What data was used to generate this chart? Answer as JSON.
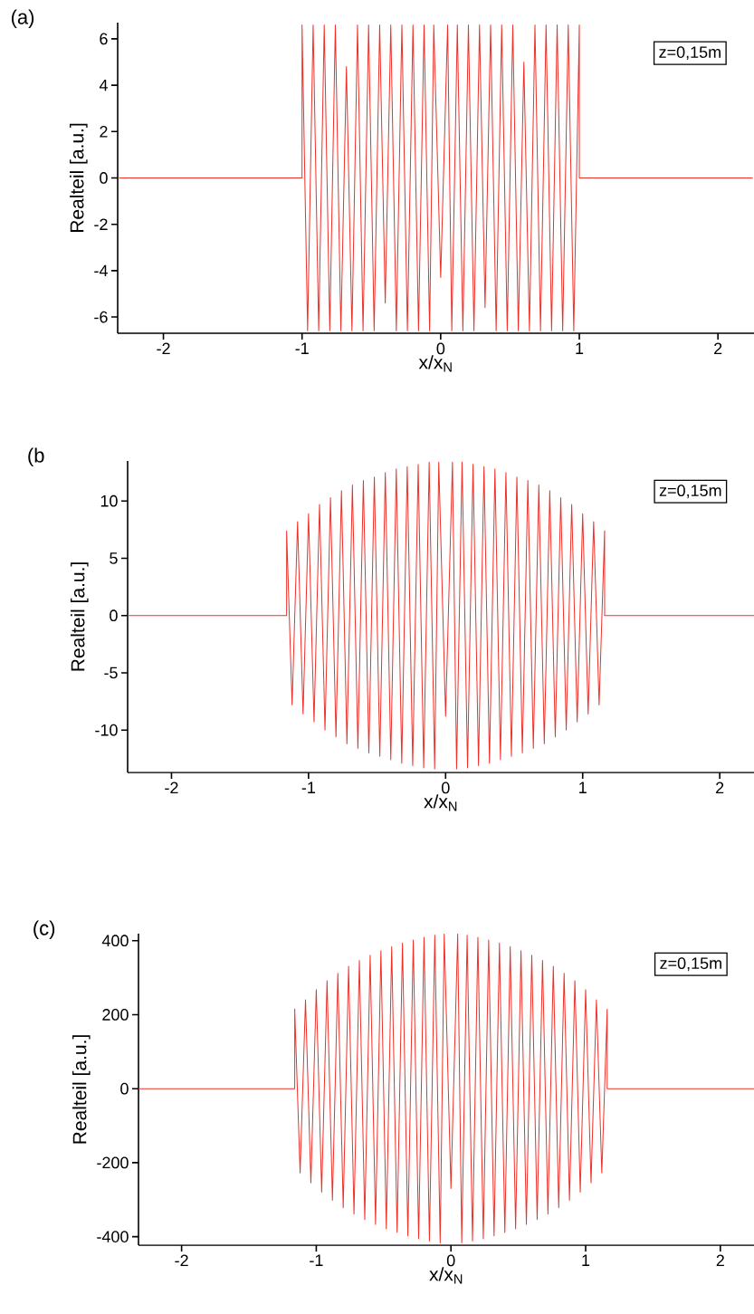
{
  "chart_data": [
    {
      "type": "line",
      "title": "(a)",
      "xlabel": "x/x$_{N}$",
      "ylabel": "Realteil [a.u.]",
      "annotations": [
        "z=0,15m"
      ],
      "color": "#ee3029",
      "xlim": [
        -2.33,
        2.26
      ],
      "ylim": [
        -6.7,
        6.7
      ],
      "xticks": [
        -2,
        -1,
        0,
        1,
        2
      ],
      "yticks": [
        -6,
        -4,
        -2,
        0,
        2,
        4,
        6
      ],
      "x": [
        -2.32,
        -1.0,
        -1.0,
        -0.96,
        -0.92,
        -0.88,
        -0.84,
        -0.8,
        -0.76,
        -0.72,
        -0.68,
        -0.64,
        -0.6,
        -0.56,
        -0.52,
        -0.48,
        -0.44,
        -0.4,
        -0.36,
        -0.32,
        -0.28,
        -0.24,
        -0.2,
        -0.16,
        -0.12,
        -0.08,
        -0.05,
        0,
        0.05,
        0.08,
        0.12,
        0.16,
        0.2,
        0.24,
        0.28,
        0.32,
        0.36,
        0.4,
        0.44,
        0.48,
        0.52,
        0.56,
        0.6,
        0.64,
        0.68,
        0.72,
        0.76,
        0.8,
        0.84,
        0.88,
        0.92,
        0.96,
        1.0,
        1.0,
        2.25
      ],
      "values": [
        0,
        0,
        6.6,
        -6.6,
        6.6,
        -6.6,
        6.6,
        -6.6,
        6.6,
        -6.6,
        4.8,
        -6.6,
        6.6,
        -6.6,
        6.6,
        -6.6,
        6.6,
        -5.4,
        6.6,
        -6.6,
        6.6,
        -6.6,
        6.6,
        -6.6,
        6.6,
        -6.6,
        6.6,
        -4.3,
        6.6,
        -6.6,
        6.6,
        -6.6,
        6.6,
        -6.6,
        6.6,
        -5.6,
        6.6,
        -6.6,
        6.6,
        -6.6,
        6.6,
        -6.6,
        5.0,
        -6.6,
        6.6,
        -6.6,
        6.6,
        -6.6,
        6.6,
        -6.6,
        6.6,
        -6.6,
        6.6,
        0,
        0
      ]
    },
    {
      "type": "line",
      "title": "(b",
      "xlabel": "x/x$_{N}$",
      "ylabel": "Realteil [a.u.]",
      "annotations": [
        "z=0,15m"
      ],
      "color": "#ee3029",
      "xlim": [
        -2.32,
        2.25
      ],
      "ylim": [
        -13.7,
        13.5
      ],
      "xticks": [
        -2,
        -1,
        0,
        1,
        2
      ],
      "yticks": [
        -10,
        -5,
        0,
        5,
        10
      ],
      "x": [
        -2.32,
        -1.16,
        -1.16,
        -1.12,
        -1.08,
        -1.04,
        -1.0,
        -0.96,
        -0.92,
        -0.88,
        -0.84,
        -0.8,
        -0.76,
        -0.72,
        -0.68,
        -0.64,
        -0.6,
        -0.56,
        -0.52,
        -0.48,
        -0.44,
        -0.4,
        -0.36,
        -0.32,
        -0.28,
        -0.24,
        -0.2,
        -0.16,
        -0.12,
        -0.08,
        -0.05,
        0,
        0.05,
        0.08,
        0.12,
        0.16,
        0.2,
        0.24,
        0.28,
        0.32,
        0.36,
        0.4,
        0.44,
        0.48,
        0.52,
        0.56,
        0.6,
        0.64,
        0.68,
        0.72,
        0.76,
        0.8,
        0.84,
        0.88,
        0.92,
        0.96,
        1.0,
        1.04,
        1.08,
        1.12,
        1.16,
        1.16,
        2.25
      ],
      "values": [
        0,
        0,
        7.4,
        -7.8,
        8.2,
        -8.6,
        8.9,
        -9.3,
        9.7,
        -10.0,
        10.3,
        -10.6,
        10.9,
        -11.2,
        11.4,
        -11.6,
        11.8,
        -12.0,
        12.1,
        -12.3,
        12.5,
        -12.6,
        12.8,
        -12.9,
        13.0,
        -13.1,
        13.2,
        -13.3,
        13.4,
        -13.4,
        13.4,
        -8.8,
        13.4,
        -13.4,
        13.4,
        -13.3,
        13.2,
        -13.1,
        13.0,
        -12.9,
        12.8,
        -12.6,
        12.5,
        -12.3,
        12.1,
        -12.0,
        11.8,
        -11.6,
        11.4,
        -11.2,
        10.9,
        -10.6,
        10.3,
        -10.0,
        9.7,
        -9.3,
        8.9,
        -8.6,
        8.2,
        -7.8,
        7.4,
        0,
        0
      ]
    },
    {
      "type": "line",
      "title": "(c)",
      "xlabel": "x/x$_{N}$",
      "ylabel": "Realteil [a.u.]",
      "annotations": [
        "z=0,15m"
      ],
      "color": "#ee3029",
      "xlim": [
        -2.32,
        2.25
      ],
      "ylim": [
        -423,
        419
      ],
      "xticks": [
        -2,
        -1,
        0,
        1,
        2
      ],
      "yticks": [
        -400,
        -200,
        0,
        200,
        400
      ],
      "x": [
        -2.32,
        -1.16,
        -1.16,
        -1.12,
        -1.08,
        -1.04,
        -1.0,
        -0.96,
        -0.92,
        -0.88,
        -0.84,
        -0.8,
        -0.76,
        -0.72,
        -0.68,
        -0.64,
        -0.6,
        -0.56,
        -0.52,
        -0.48,
        -0.44,
        -0.4,
        -0.36,
        -0.32,
        -0.28,
        -0.24,
        -0.2,
        -0.16,
        -0.12,
        -0.08,
        -0.05,
        0,
        0.05,
        0.08,
        0.12,
        0.16,
        0.2,
        0.24,
        0.28,
        0.32,
        0.36,
        0.4,
        0.44,
        0.48,
        0.52,
        0.56,
        0.6,
        0.64,
        0.68,
        0.72,
        0.76,
        0.8,
        0.84,
        0.88,
        0.92,
        0.96,
        1.0,
        1.04,
        1.08,
        1.12,
        1.16,
        1.16,
        2.25
      ],
      "values": [
        0,
        0,
        215,
        -228,
        240,
        -255,
        268,
        -280,
        292,
        -302,
        312,
        -322,
        331,
        -339,
        347,
        -354,
        361,
        -367,
        373,
        -379,
        384,
        -389,
        394,
        -398,
        402,
        -406,
        409,
        -412,
        415,
        -417,
        418,
        -270,
        418,
        -417,
        415,
        -412,
        409,
        -406,
        402,
        -398,
        394,
        -389,
        384,
        -379,
        373,
        -367,
        361,
        -354,
        347,
        -339,
        331,
        -322,
        312,
        -302,
        292,
        -280,
        268,
        -255,
        240,
        -228,
        215,
        0,
        0
      ]
    }
  ]
}
